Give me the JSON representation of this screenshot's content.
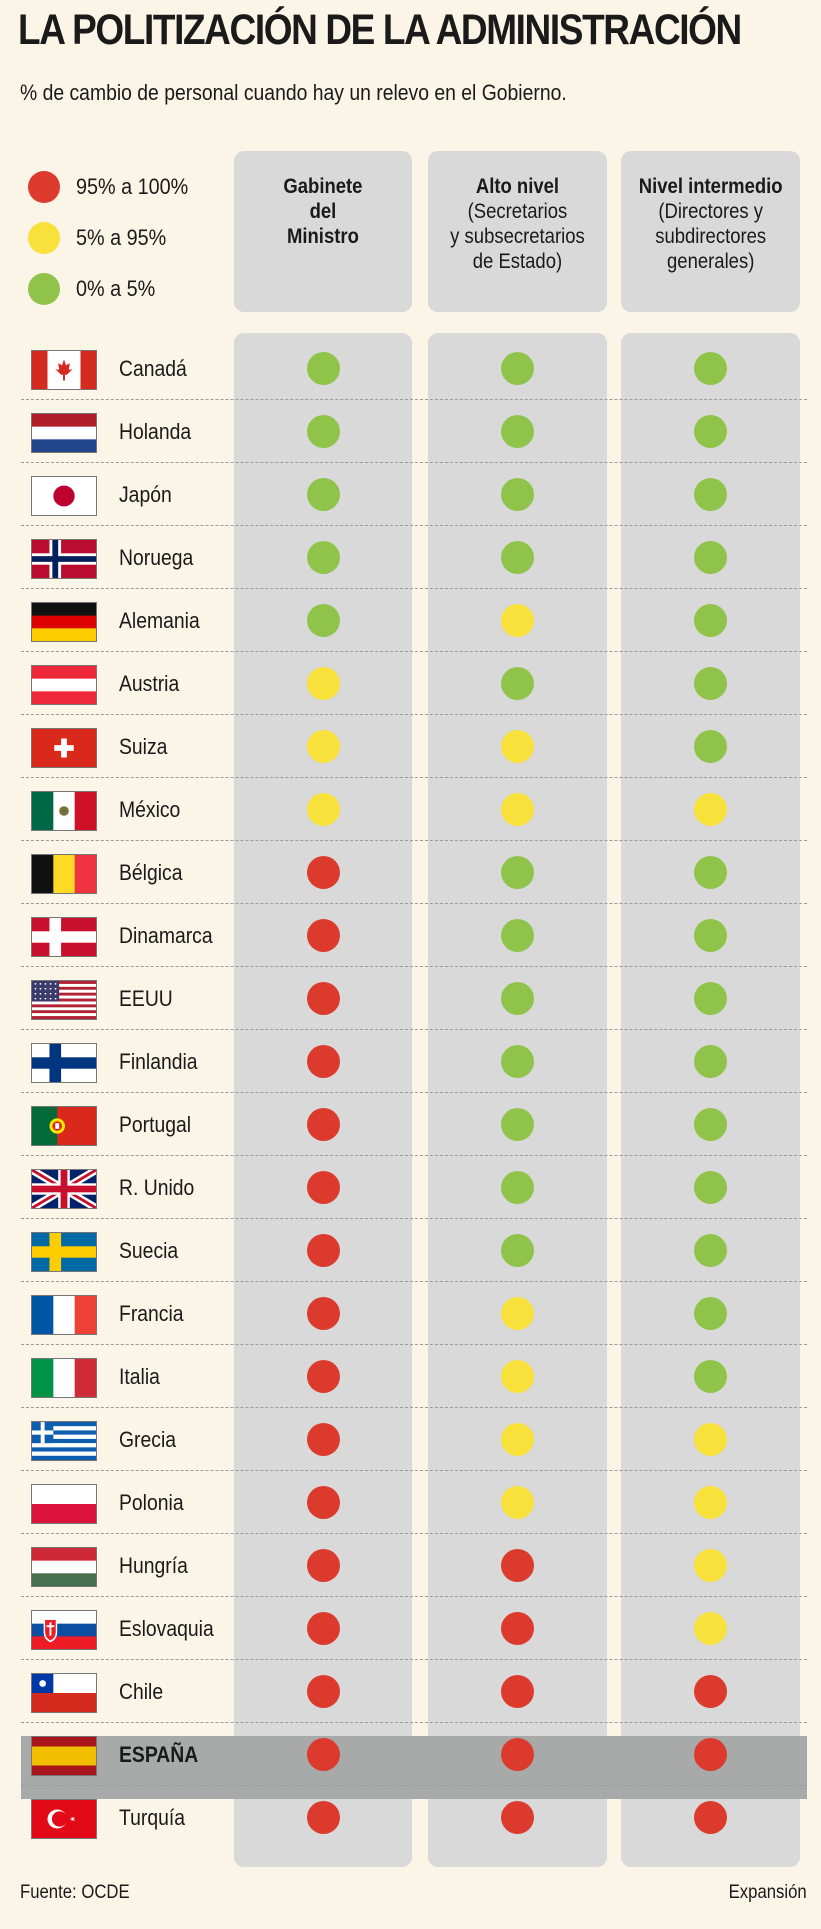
{
  "title": "LA POLITIZACIÓN DE LA ADMINISTRACIÓN",
  "subtitle": "% de cambio de personal cuando hay un relevo en el Gobierno.",
  "colors": {
    "red": "#dc3a2c",
    "yellow": "#f8e13a",
    "green": "#8fc34a",
    "background": "#fbf5e8",
    "column": "#d8d9d8",
    "highlight": "#a8a9a9"
  },
  "legend": [
    {
      "key": "red",
      "label": "95% a 100%"
    },
    {
      "key": "yellow",
      "label": "5% a 95%"
    },
    {
      "key": "green",
      "label": "0% a 5%"
    }
  ],
  "columns": [
    {
      "title": "Gabinete\ndel\nMinistro",
      "subtitle": ""
    },
    {
      "title": "Alto nivel",
      "subtitle": "(Secretarios\ny subsecretarios\nde Estado)"
    },
    {
      "title": "Nivel intermedio",
      "subtitle": "(Directores y\nsubdirectores\ngenerales)"
    }
  ],
  "chart_data": {
    "type": "table",
    "title": "LA POLITIZACIÓN DE LA ADMINISTRACIÓN",
    "subtitle": "% de cambio de personal cuando hay un relevo en el Gobierno.",
    "columns": [
      "Gabinete del Ministro",
      "Alto nivel (Secretarios y subsecretarios de Estado)",
      "Nivel intermedio (Directores y subdirectores generales)"
    ],
    "legend": {
      "red": "95% a 100%",
      "yellow": "5% a 95%",
      "green": "0% a 5%"
    },
    "highlighted_row": "ESPAÑA",
    "rows": [
      {
        "country": "Canadá",
        "flag": "canada-flag",
        "values": [
          "green",
          "green",
          "green"
        ]
      },
      {
        "country": "Holanda",
        "flag": "netherlands-flag",
        "values": [
          "green",
          "green",
          "green"
        ]
      },
      {
        "country": "Japón",
        "flag": "japan-flag",
        "values": [
          "green",
          "green",
          "green"
        ]
      },
      {
        "country": "Noruega",
        "flag": "norway-flag",
        "values": [
          "green",
          "green",
          "green"
        ]
      },
      {
        "country": "Alemania",
        "flag": "germany-flag",
        "values": [
          "green",
          "yellow",
          "green"
        ]
      },
      {
        "country": "Austria",
        "flag": "austria-flag",
        "values": [
          "yellow",
          "green",
          "green"
        ]
      },
      {
        "country": "Suiza",
        "flag": "switzerland-flag",
        "values": [
          "yellow",
          "yellow",
          "green"
        ]
      },
      {
        "country": "México",
        "flag": "mexico-flag",
        "values": [
          "yellow",
          "yellow",
          "yellow"
        ]
      },
      {
        "country": "Bélgica",
        "flag": "belgium-flag",
        "values": [
          "red",
          "green",
          "green"
        ]
      },
      {
        "country": "Dinamarca",
        "flag": "denmark-flag",
        "values": [
          "red",
          "green",
          "green"
        ]
      },
      {
        "country": "EEUU",
        "flag": "usa-flag",
        "values": [
          "red",
          "green",
          "green"
        ]
      },
      {
        "country": "Finlandia",
        "flag": "finland-flag",
        "values": [
          "red",
          "green",
          "green"
        ]
      },
      {
        "country": "Portugal",
        "flag": "portugal-flag",
        "values": [
          "red",
          "green",
          "green"
        ]
      },
      {
        "country": "R. Unido",
        "flag": "uk-flag",
        "values": [
          "red",
          "green",
          "green"
        ]
      },
      {
        "country": "Suecia",
        "flag": "sweden-flag",
        "values": [
          "red",
          "green",
          "green"
        ]
      },
      {
        "country": "Francia",
        "flag": "france-flag",
        "values": [
          "red",
          "yellow",
          "green"
        ]
      },
      {
        "country": "Italia",
        "flag": "italy-flag",
        "values": [
          "red",
          "yellow",
          "green"
        ]
      },
      {
        "country": "Grecia",
        "flag": "greece-flag",
        "values": [
          "red",
          "yellow",
          "yellow"
        ]
      },
      {
        "country": "Polonia",
        "flag": "poland-flag",
        "values": [
          "red",
          "yellow",
          "yellow"
        ]
      },
      {
        "country": "Hungría",
        "flag": "hungary-flag",
        "values": [
          "red",
          "red",
          "yellow"
        ]
      },
      {
        "country": "Eslovaquia",
        "flag": "slovakia-flag",
        "values": [
          "red",
          "red",
          "yellow"
        ]
      },
      {
        "country": "Chile",
        "flag": "chile-flag",
        "values": [
          "red",
          "red",
          "red"
        ]
      },
      {
        "country": "ESPAÑA",
        "flag": "spain-flag",
        "values": [
          "red",
          "red",
          "red"
        ]
      },
      {
        "country": "Turquía",
        "flag": "turkey-flag",
        "values": [
          "red",
          "red",
          "red"
        ]
      }
    ]
  },
  "footer": {
    "source": "Fuente: OCDE",
    "brand": "Expansión"
  }
}
